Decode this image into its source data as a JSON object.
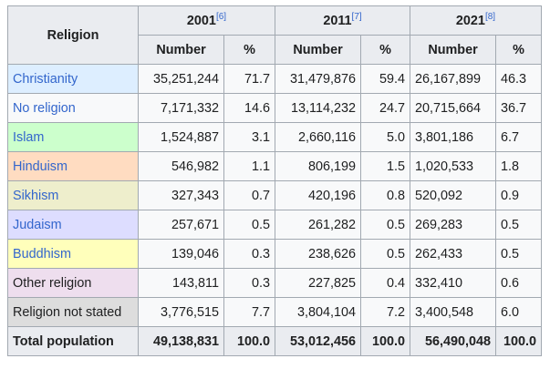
{
  "header": {
    "religion_label": "Religion",
    "years": [
      {
        "year": "2001",
        "ref": "[6]"
      },
      {
        "year": "2011",
        "ref": "[7]"
      },
      {
        "year": "2021",
        "ref": "[8]"
      }
    ],
    "number_label": "Number",
    "percent_label": "%"
  },
  "rows": [
    {
      "name": "Christianity",
      "bg": "#ddeeff",
      "link": true,
      "v": [
        "35,251,244",
        "71.7",
        "31,479,876",
        "59.4",
        "26,167,899",
        "46.3"
      ]
    },
    {
      "name": "No religion",
      "bg": "#f8f9fa",
      "link": true,
      "v": [
        "7,171,332",
        "14.6",
        "13,114,232",
        "24.7",
        "20,715,664",
        "36.7"
      ]
    },
    {
      "name": "Islam",
      "bg": "#ccffcc",
      "link": true,
      "v": [
        "1,524,887",
        "3.1",
        "2,660,116",
        "5.0",
        "3,801,186",
        "6.7"
      ]
    },
    {
      "name": "Hinduism",
      "bg": "#ffdcc1",
      "link": true,
      "v": [
        "546,982",
        "1.1",
        "806,199",
        "1.5",
        "1,020,533",
        "1.8"
      ]
    },
    {
      "name": "Sikhism",
      "bg": "#eeeecc",
      "link": true,
      "v": [
        "327,343",
        "0.7",
        "420,196",
        "0.8",
        "520,092",
        "0.9"
      ]
    },
    {
      "name": "Judaism",
      "bg": "#ddddff",
      "link": true,
      "v": [
        "257,671",
        "0.5",
        "261,282",
        "0.5",
        "269,283",
        "0.5"
      ]
    },
    {
      "name": "Buddhism",
      "bg": "#ffffbb",
      "link": true,
      "v": [
        "139,046",
        "0.3",
        "238,626",
        "0.5",
        "262,433",
        "0.5"
      ]
    },
    {
      "name": "Other religion",
      "bg": "#eedeee",
      "link": false,
      "v": [
        "143,811",
        "0.3",
        "227,825",
        "0.4",
        "332,410",
        "0.6"
      ]
    },
    {
      "name": "Religion not stated",
      "bg": "#dddddd",
      "link": false,
      "v": [
        "3,776,515",
        "7.7",
        "3,804,104",
        "7.2",
        "3,400,548",
        "6.0"
      ]
    }
  ],
  "total": {
    "name": "Total population",
    "v": [
      "49,138,831",
      "100.0",
      "53,012,456",
      "100.0",
      "56,490,048",
      "100.0"
    ]
  }
}
